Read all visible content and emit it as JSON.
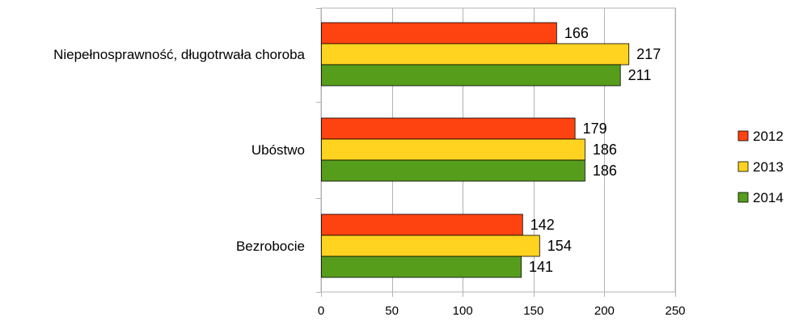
{
  "chart_data": {
    "type": "bar",
    "orientation": "horizontal",
    "title": "",
    "xlabel": "",
    "ylabel": "",
    "categories": [
      "Niepełnosprawność, długotrwała choroba",
      "Ubóstwo",
      "Bezrobocie"
    ],
    "series": [
      {
        "name": "2012",
        "color": "#ff4310",
        "values": [
          166,
          179,
          142
        ]
      },
      {
        "name": "2013",
        "color": "#ffd320",
        "values": [
          217,
          186,
          154
        ]
      },
      {
        "name": "2014",
        "color": "#579d1c",
        "values": [
          211,
          186,
          141
        ]
      }
    ],
    "xlim": [
      0,
      250
    ],
    "xticks": [
      0,
      50,
      100,
      150,
      200,
      250
    ],
    "grid": true,
    "legend": "right"
  }
}
